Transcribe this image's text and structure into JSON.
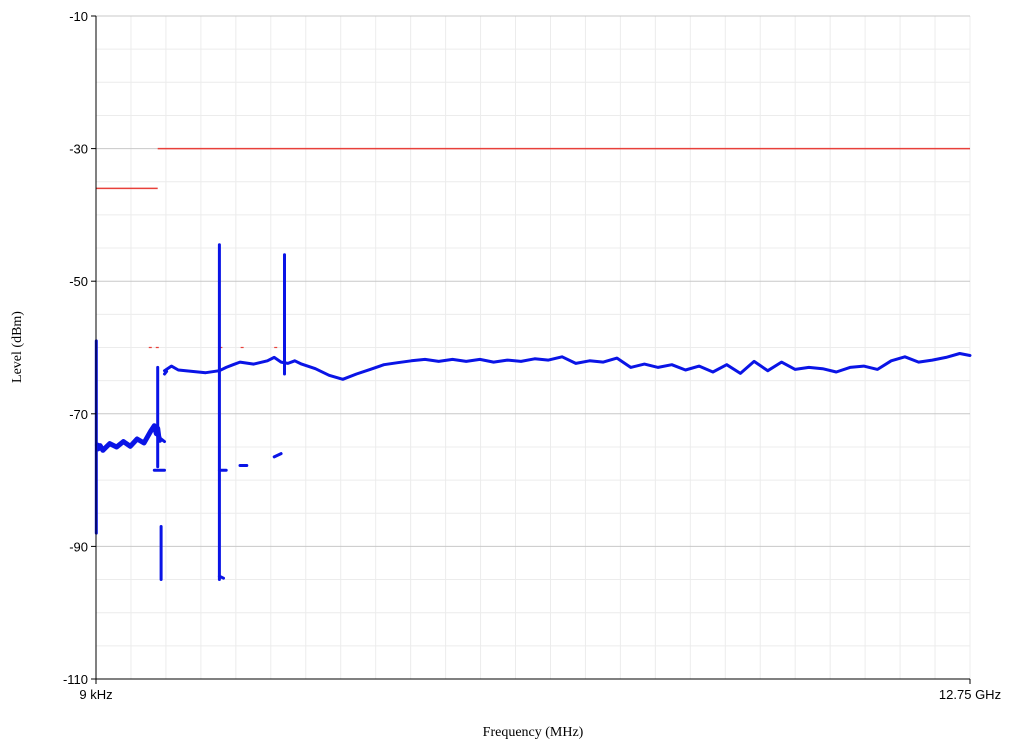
{
  "chart_data": {
    "type": "line",
    "title": "",
    "xlabel": "Frequency (MHz)",
    "ylabel": "Level (dBm)",
    "x_scale": "linear",
    "xlim": [
      0.009,
      12750
    ],
    "ylim": [
      -110,
      -10
    ],
    "y_ticks": [
      -10,
      -30,
      -50,
      -70,
      -90,
      -110
    ],
    "x_tick_labels": [
      {
        "x": 0.009,
        "label": "9 kHz"
      },
      {
        "x": 12750,
        "label": "12.75 GHz"
      }
    ],
    "grid": true,
    "colors": {
      "limit": "#e8403a",
      "trace": "#0a14e6",
      "grid_major": "#c8c8c8",
      "grid_minor": "#ececec"
    },
    "limit_lines": [
      {
        "x": [
          0.009,
          900
        ],
        "y": [
          -36,
          -36
        ]
      },
      {
        "x": [
          900,
          12750
        ],
        "y": [
          -30,
          -30
        ]
      }
    ],
    "limit_marks": [
      {
        "x": [
          770,
          950
        ],
        "y": [
          -60,
          -60
        ]
      },
      {
        "x": [
          1800,
          1900
        ],
        "y": [
          -60,
          -60
        ]
      },
      {
        "x": [
          2110,
          2170
        ],
        "y": [
          -60,
          -60
        ]
      },
      {
        "x": [
          2600,
          2690
        ],
        "y": [
          -60,
          -60
        ]
      }
    ],
    "series": [
      {
        "x": [
          20,
          30,
          60,
          100,
          200,
          300,
          400,
          500,
          600,
          700,
          750,
          800,
          850,
          880,
          900,
          915,
          930
        ],
        "y": [
          -74.7,
          -75.3,
          -74.8,
          -75.5,
          -74.5,
          -75.0,
          -74.2,
          -74.9,
          -73.8,
          -74.4,
          -73.5,
          -72.6,
          -71.8,
          -73.0,
          -72.2,
          -73.4,
          -74.0
        ]
      },
      {
        "x": [
          1000,
          1100,
          1200,
          1400,
          1600,
          1800,
          1900,
          2000,
          2100,
          2300,
          2500,
          2600,
          2700,
          2800,
          2900,
          3000,
          3200,
          3400,
          3600,
          3800,
          4000,
          4200,
          4400,
          4600,
          4800,
          5000,
          5200,
          5400,
          5600,
          5800,
          6000,
          6200,
          6400,
          6600,
          6800,
          7000,
          7200,
          7400,
          7600,
          7800,
          8000,
          8200,
          8400,
          8600,
          8800,
          9000,
          9200,
          9400,
          9600,
          9800,
          10000,
          10200,
          10400,
          10600,
          10800,
          11000,
          11200,
          11400,
          11600,
          11800,
          12000,
          12200,
          12400,
          12600,
          12750
        ],
        "y": [
          -63.5,
          -62.8,
          -63.4,
          -63.6,
          -63.8,
          -63.5,
          -63.0,
          -62.6,
          -62.2,
          -62.5,
          -62.0,
          -61.5,
          -62.2,
          -62.4,
          -62.0,
          -62.5,
          -63.2,
          -64.2,
          -64.8,
          -64.0,
          -63.3,
          -62.6,
          -62.3,
          -62.0,
          -61.8,
          -62.1,
          -61.8,
          -62.1,
          -61.8,
          -62.2,
          -61.9,
          -62.1,
          -61.7,
          -61.9,
          -61.4,
          -62.4,
          -62.0,
          -62.2,
          -61.6,
          -63.0,
          -62.5,
          -63.0,
          -62.6,
          -63.4,
          -62.8,
          -63.7,
          -62.6,
          -63.9,
          -62.1,
          -63.5,
          -62.2,
          -63.3,
          -63.0,
          -63.2,
          -63.7,
          -63.0,
          -62.8,
          -63.3,
          -62.0,
          -61.4,
          -62.2,
          -61.9,
          -61.5,
          -60.9,
          -61.2
        ]
      },
      {
        "x": [
          1000,
          1030
        ],
        "y": [
          -64.0,
          -63.6
        ]
      },
      {
        "x": [
          1800,
          1800,
          1800
        ],
        "y": [
          -95.0,
          -44.5,
          -95.0
        ]
      },
      {
        "x": [
          2750,
          2750,
          2750
        ],
        "y": [
          -64.0,
          -46.0,
          -64.0
        ]
      },
      {
        "x": [
          5,
          5,
          5
        ],
        "y": [
          -88.0,
          -59.0,
          -88.0
        ]
      },
      {
        "x": [
          900,
          900,
          900
        ],
        "y": [
          -78.0,
          -63.0,
          -78.0
        ]
      },
      {
        "x": [
          950,
          950
        ],
        "y": [
          -87.0,
          -95.0
        ]
      },
      {
        "x": [
          1800,
          1860
        ],
        "y": [
          -94.5,
          -94.8
        ]
      },
      {
        "x": [
          850,
          1000
        ],
        "y": [
          -78.5,
          -78.5
        ]
      },
      {
        "x": [
          1800,
          1900
        ],
        "y": [
          -78.5,
          -78.5
        ]
      },
      {
        "x": [
          2100,
          2200
        ],
        "y": [
          -77.8,
          -77.8
        ]
      },
      {
        "x": [
          2600,
          2700
        ],
        "y": [
          -76.5,
          -76.0
        ]
      },
      {
        "x": [
          950,
          1000
        ],
        "y": [
          -73.8,
          -74.2
        ]
      }
    ]
  }
}
